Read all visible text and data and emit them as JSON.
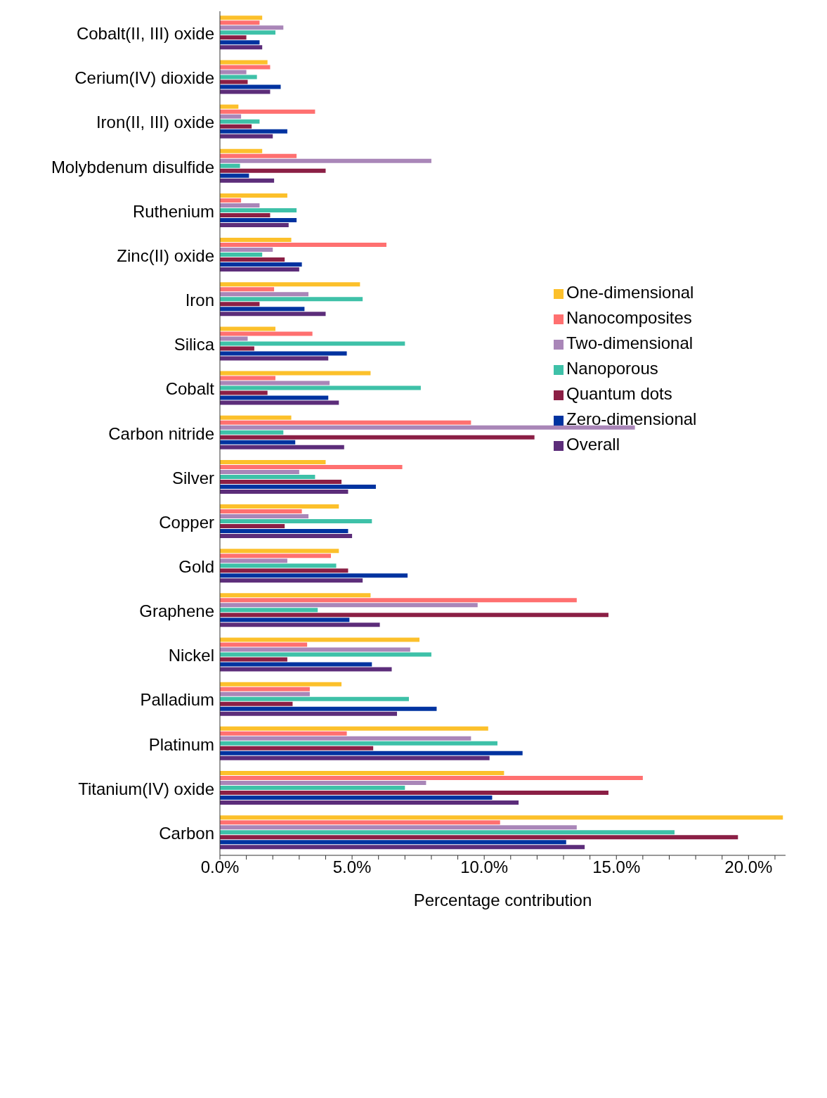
{
  "chart_data": {
    "type": "bar",
    "orientation": "horizontal",
    "xlabel": "Percentage contribution",
    "legend": "right",
    "grid": false,
    "categories": [
      "Cobalt(II, III) oxide",
      "Cerium(IV) dioxide",
      "Iron(II, III) oxide",
      "Molybdenum disulfide",
      "Ruthenium",
      "Zinc(II) oxide",
      "Iron",
      "Silica",
      "Cobalt",
      "Carbon nitride",
      "Silver",
      "Copper",
      "Gold",
      "Graphene",
      "Nickel",
      "Palladium",
      "Platinum",
      "Titanium(IV) oxide",
      "Carbon"
    ],
    "xlim": [
      0,
      21.4
    ],
    "xticks": [
      {
        "value": 0,
        "label": "0.0%"
      },
      {
        "value": 1,
        "label": null
      },
      {
        "value": 2,
        "label": null
      },
      {
        "value": 3,
        "label": null
      },
      {
        "value": 4,
        "label": null
      },
      {
        "value": 5,
        "label": "5.0%"
      },
      {
        "value": 6,
        "label": null
      },
      {
        "value": 7,
        "label": null
      },
      {
        "value": 8,
        "label": null
      },
      {
        "value": 9,
        "label": null
      },
      {
        "value": 10,
        "label": "10.0%"
      },
      {
        "value": 11,
        "label": null
      },
      {
        "value": 12,
        "label": null
      },
      {
        "value": 13,
        "label": null
      },
      {
        "value": 14,
        "label": null
      },
      {
        "value": 15,
        "label": "15.0%"
      },
      {
        "value": 16,
        "label": null
      },
      {
        "value": 17,
        "label": null
      },
      {
        "value": 18,
        "label": null
      },
      {
        "value": 19,
        "label": null
      },
      {
        "value": 20,
        "label": "20.0%"
      },
      {
        "value": 21,
        "label": null
      }
    ],
    "series": [
      {
        "name": "One-dimensional",
        "color": "#fcc02b",
        "values": [
          1.6,
          1.8,
          0.7,
          1.6,
          2.55,
          2.7,
          5.3,
          2.1,
          5.7,
          2.7,
          4.0,
          4.5,
          4.5,
          5.7,
          7.55,
          4.6,
          10.15,
          10.75,
          21.3
        ]
      },
      {
        "name": "Nanocomposites",
        "color": "#ff7070",
        "values": [
          1.5,
          1.9,
          3.6,
          2.9,
          0.8,
          6.3,
          2.05,
          3.5,
          2.1,
          9.5,
          6.9,
          3.1,
          4.2,
          13.5,
          3.3,
          3.4,
          4.8,
          16.0,
          10.6
        ]
      },
      {
        "name": "Two-dimensional",
        "color": "#a986b8",
        "values": [
          2.4,
          1.0,
          0.8,
          8.0,
          1.5,
          2.0,
          3.35,
          1.05,
          4.15,
          15.7,
          3.0,
          3.35,
          2.55,
          9.75,
          7.2,
          3.4,
          9.5,
          7.8,
          13.5
        ]
      },
      {
        "name": "Nanoporous",
        "color": "#3ec1a8",
        "values": [
          2.1,
          1.4,
          1.5,
          0.76,
          2.9,
          1.6,
          5.4,
          7.0,
          7.6,
          2.4,
          3.6,
          5.75,
          4.4,
          3.7,
          8.0,
          7.15,
          10.5,
          7.0,
          17.2
        ]
      },
      {
        "name": "Quantum dots",
        "color": "#8b1f45",
        "values": [
          1.0,
          1.05,
          1.2,
          4.0,
          1.9,
          2.45,
          1.5,
          1.3,
          1.8,
          11.9,
          4.6,
          2.45,
          4.85,
          14.7,
          2.55,
          2.75,
          5.8,
          14.7,
          19.6
        ]
      },
      {
        "name": "Zero-dimensional",
        "color": "#0033a0",
        "values": [
          1.5,
          2.3,
          2.55,
          1.1,
          2.9,
          3.1,
          3.2,
          4.8,
          4.1,
          2.85,
          5.9,
          4.85,
          7.1,
          4.9,
          5.75,
          8.2,
          11.45,
          10.3,
          13.1
        ]
      },
      {
        "name": "Overall",
        "color": "#5c2d7a",
        "values": [
          1.6,
          1.9,
          2.0,
          2.05,
          2.6,
          3.0,
          4.0,
          4.1,
          4.5,
          4.7,
          4.85,
          5.0,
          5.4,
          6.05,
          6.5,
          6.7,
          10.2,
          11.3,
          13.8
        ]
      }
    ]
  }
}
